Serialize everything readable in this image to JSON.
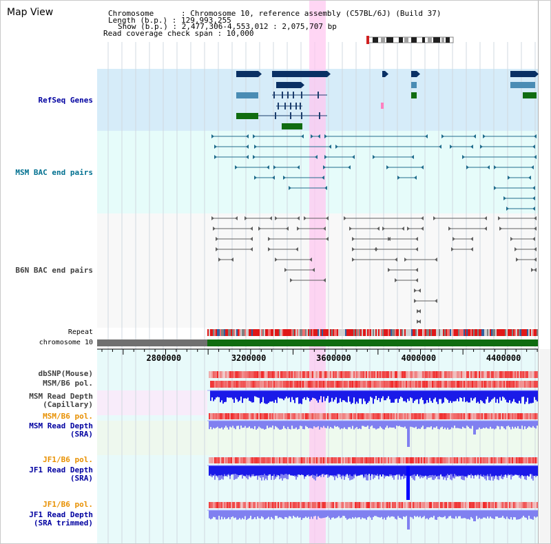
{
  "viewer": {
    "title": "Map View"
  },
  "info": {
    "chromosome_line": "Chromosome      : Chromosome 10, reference assembly (C57BL/6J) (Build 37)",
    "length_line": "Length (b.p.) : 129,993,255",
    "show_line": "Show (b.p.) : 2,477,306-4,553,012 : 2,075,707 bp",
    "coverage_line": "Read coverage check span : 10,000"
  },
  "tracks": {
    "refseq": {
      "label": "RefSeq Genes",
      "color": "#0000a0"
    },
    "msm_bac": {
      "label": "MSM BAC end pairs",
      "color": "#007090"
    },
    "b6n_bac": {
      "label": "B6N BAC end pairs",
      "color": "#404040"
    },
    "repeat": {
      "label": "Repeat"
    },
    "chromosome": {
      "label": "chromosome 10"
    },
    "dbsnp": {
      "label": "dbSNP(Mouse)"
    },
    "msm_b6_pol_1": {
      "label": "MSM/B6 pol."
    },
    "msm_read_depth_cap": {
      "label_1": "MSM Read Depth",
      "label_2": "(Capillary)"
    },
    "msm_b6_pol_2": {
      "label": "MSM/B6 pol."
    },
    "msm_read_depth_sra": {
      "label_1": "MSM Read Depth",
      "label_2": "(SRA)"
    },
    "jf1_b6_pol_1": {
      "label": "JF1/B6 pol."
    },
    "jf1_read_depth_sra": {
      "label_1": "JF1 Read Depth",
      "label_2": "(SRA)"
    },
    "jf1_b6_pol_2": {
      "label": "JF1/B6 pol."
    },
    "jf1_read_depth_trimmed": {
      "label_1": "JF1 Read Depth",
      "label_2": "(SRA trimmed)"
    }
  },
  "axis": {
    "ticks": [
      {
        "value": 2800000,
        "label": "2800000"
      },
      {
        "value": 3200000,
        "label": "3200000"
      },
      {
        "value": 3600000,
        "label": "3600000"
      },
      {
        "value": 4000000,
        "label": "4000000"
      },
      {
        "value": 4400000,
        "label": "4400000"
      }
    ]
  },
  "colors": {
    "refseq_bg": "#d6ecf9",
    "msm_bg": "#e6fcfa",
    "b6n_bg": "#f8f8f8",
    "highlight": "#ffc8f0",
    "gene_dark": "#0a3064",
    "gene_mid": "#4a8cb4",
    "gene_green": "#106c10",
    "msm_line": "#206c8c",
    "b6n_line": "#606060",
    "depth_blue": "#1a1ae8",
    "depth_light": "#8080f0",
    "pol_red": "#f04040",
    "label_blue": "#0000a0",
    "label_teal": "#007090",
    "label_orange": "#e89000",
    "label_gray": "#404040"
  }
}
